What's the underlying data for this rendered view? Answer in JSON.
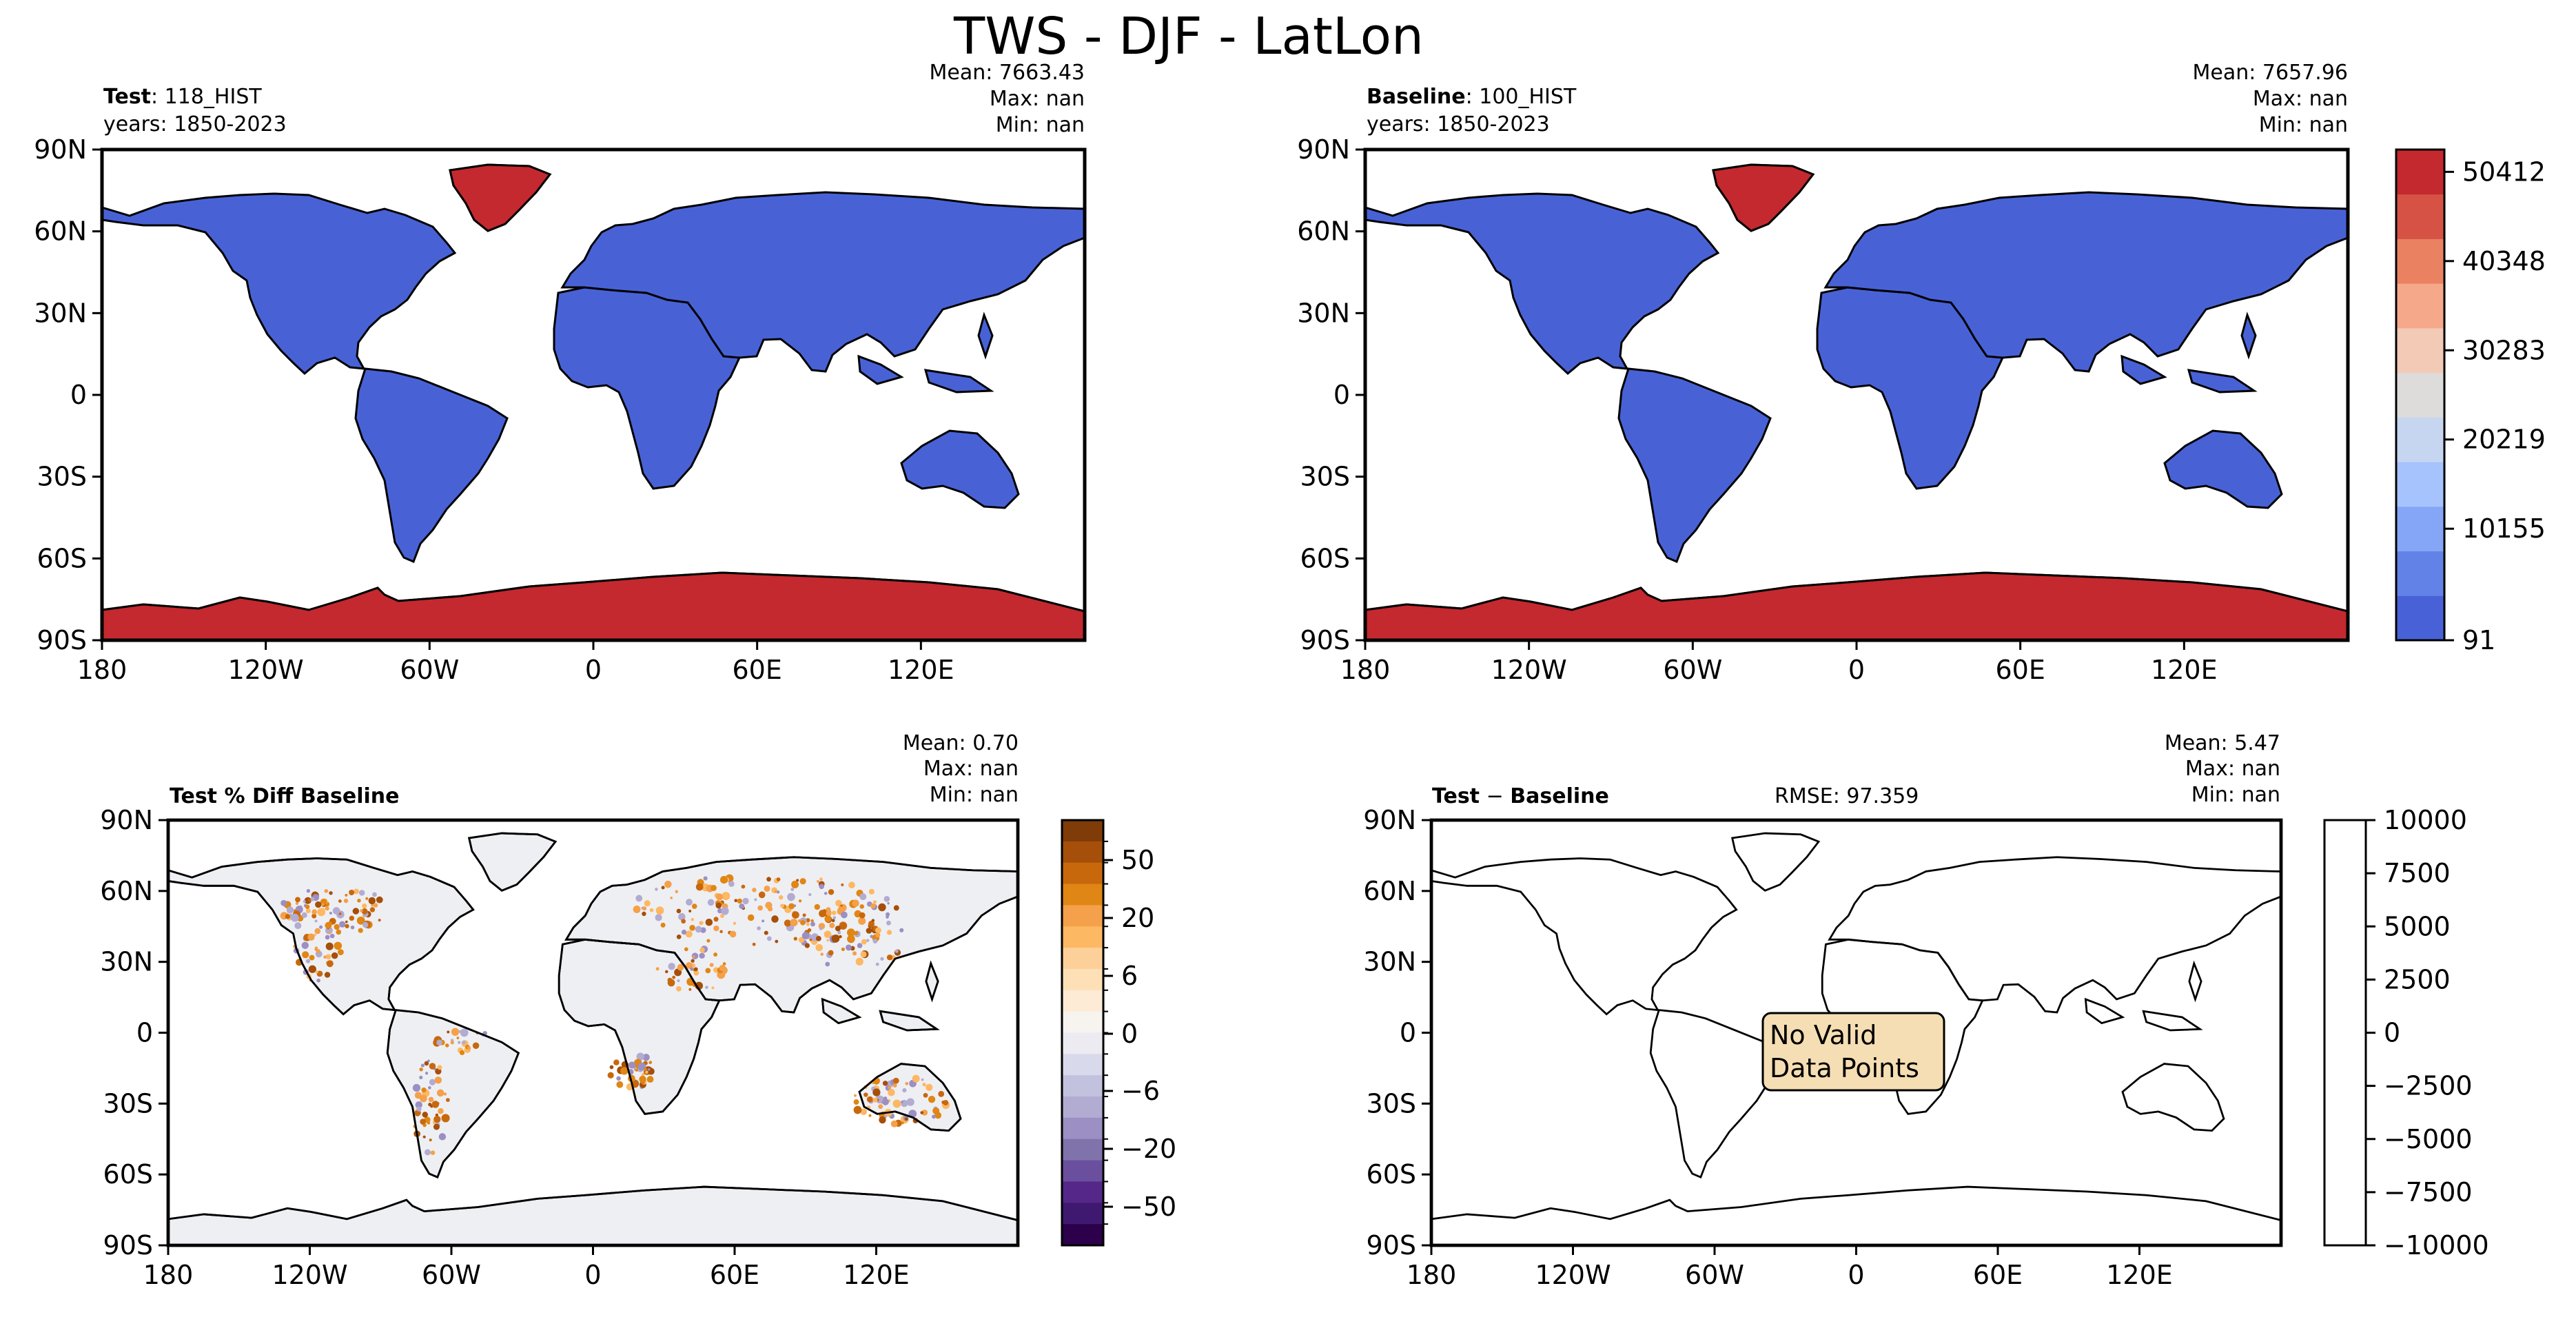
{
  "figure": {
    "title": "TWS - DJF - LatLon"
  },
  "axes": {
    "lat_ticks": [
      "90N",
      "60N",
      "30N",
      "0",
      "30S",
      "60S",
      "90S"
    ],
    "lon_ticks": [
      "180",
      "120W",
      "60W",
      "0",
      "60E",
      "120E"
    ]
  },
  "panels": {
    "test": {
      "label_bold": "Test",
      "label_rest": ": 118_HIST",
      "years": "years: 1850-2023",
      "stats": {
        "mean": "Mean: 7663.43",
        "max": "Max:   nan",
        "min": "Min:   nan"
      }
    },
    "baseline": {
      "label_bold": "Baseline",
      "label_rest": ": 100_HIST",
      "years": "years: 1850-2023",
      "stats": {
        "mean": "Mean: 7657.96",
        "max": "Max:   nan",
        "min": "Min:   nan"
      }
    },
    "pct_diff": {
      "title": "Test % Diff Baseline",
      "stats": {
        "mean": "Mean:  0.70",
        "max": "Max:   nan",
        "min": "Min:   nan"
      }
    },
    "diff": {
      "title_bold_1": "Test",
      "title_sep": " − ",
      "title_bold_2": "Baseline",
      "rmse": "RMSE: 97.359",
      "stats": {
        "mean": "Mean:  5.47",
        "max": "Max:   nan",
        "min": "Min:   nan"
      },
      "annotation_line1": "No Valid",
      "annotation_line2": "Data Points"
    }
  },
  "colors": {
    "land_low": "#4862d6",
    "land_high": "#c3292e",
    "ocean": "#ffffff",
    "pct_land": "#eeeff3",
    "annotation_bg": "#f5deb3"
  },
  "chart_data": [
    {
      "type": "heatmap",
      "panel": "test",
      "title": "Test: 118_HIST",
      "xlim": [
        -180,
        180
      ],
      "ylim": [
        -90,
        90
      ],
      "xticks": [
        -180,
        -120,
        -60,
        0,
        60,
        120
      ],
      "yticks": [
        90,
        60,
        30,
        0,
        -30,
        -60,
        -90
      ],
      "colorbar": {
        "type": "discrete",
        "ticks": [
          "91",
          "10155",
          "20219",
          "30283",
          "40348",
          "50412"
        ],
        "colors": [
          "#4961d7",
          "#6382e8",
          "#85a5f7",
          "#a6c3fd",
          "#c6d6f1",
          "#dddcdb",
          "#f2cab6",
          "#f6a98a",
          "#ea8262",
          "#d65244",
          "#c3292e"
        ]
      },
      "mean": 7663.43,
      "max": "nan",
      "min": "nan"
    },
    {
      "type": "heatmap",
      "panel": "baseline",
      "title": "Baseline: 100_HIST",
      "xlim": [
        -180,
        180
      ],
      "ylim": [
        -90,
        90
      ],
      "mean": 7657.96,
      "max": "nan",
      "min": "nan"
    },
    {
      "type": "heatmap",
      "panel": "pct_diff",
      "title": "Test % Diff Baseline",
      "xlim": [
        -180,
        180
      ],
      "ylim": [
        -90,
        90
      ],
      "colorbar": {
        "type": "discrete",
        "ticks": [
          "50",
          "20",
          "6",
          "0",
          "−6",
          "−20",
          "−50"
        ],
        "colors_top_to_bottom": [
          "#7f3b08",
          "#a54f0a",
          "#c8680d",
          "#e08614",
          "#f5a04a",
          "#fdb863",
          "#fdd09a",
          "#fee0b6",
          "#fdebd6",
          "#f7f3ee",
          "#ecebf1",
          "#d8daeb",
          "#c2c2df",
          "#b2abd2",
          "#9b8fc3",
          "#8073ac",
          "#6a4f9e",
          "#542788",
          "#3f1870",
          "#2d004b"
        ]
      },
      "mean": 0.7,
      "max": "nan",
      "min": "nan"
    },
    {
      "type": "heatmap",
      "panel": "diff",
      "title": "Test − Baseline",
      "xlim": [
        -180,
        180
      ],
      "ylim": [
        -90,
        90
      ],
      "rmse": 97.359,
      "colorbar": {
        "type": "continuous",
        "ticks": [
          "10000",
          "7500",
          "5000",
          "2500",
          "0",
          "−2500",
          "−5000",
          "−7500",
          "−10000"
        ]
      },
      "mean": 5.47,
      "max": "nan",
      "min": "nan",
      "annotation": "No Valid Data Points"
    }
  ]
}
